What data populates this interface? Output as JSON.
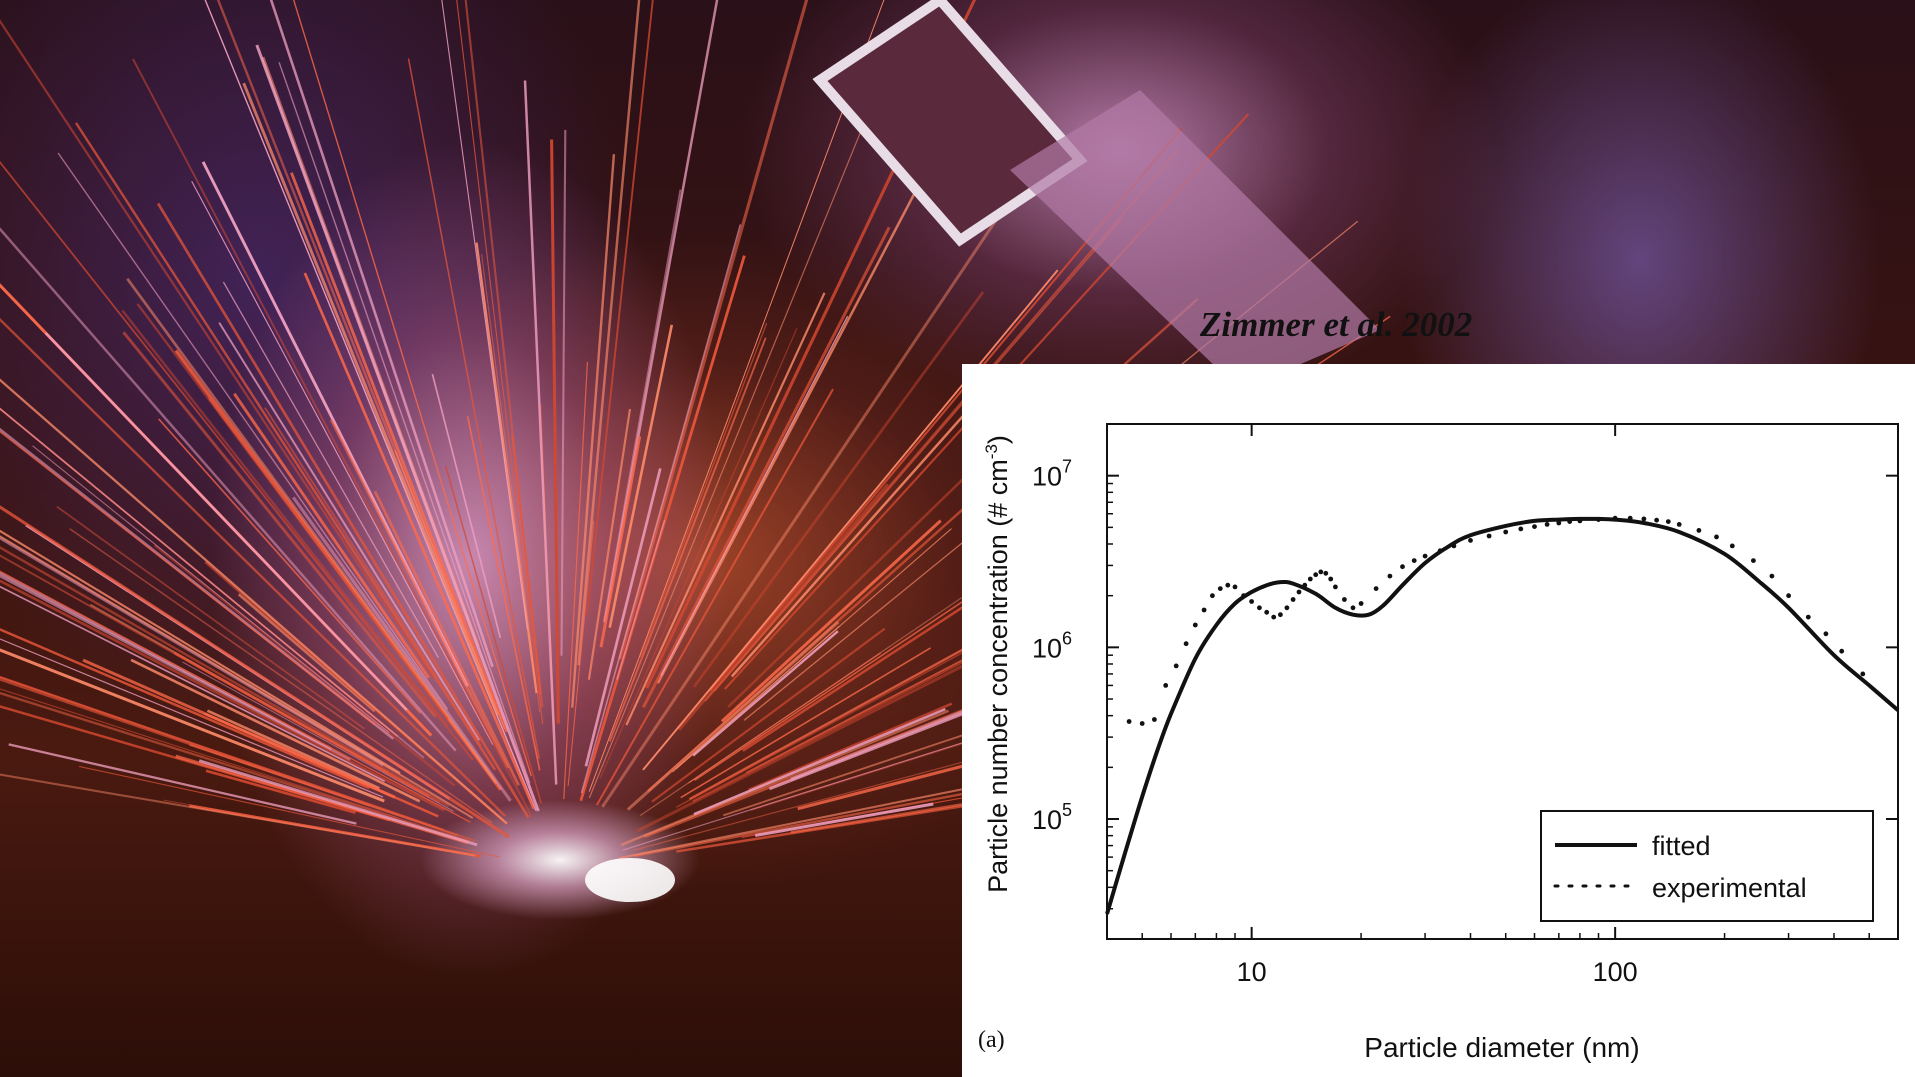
{
  "credit": "Zimmer et al. 2002",
  "chart_data": {
    "type": "line",
    "panel_label": "(a)",
    "xlabel": "Particle diameter (nm)",
    "ylabel": "Particle number concentration (# cm",
    "ylabel_sup": "-3",
    "ylabel_close": ")",
    "xscale": "log",
    "yscale": "log",
    "xlim": [
      4,
      600
    ],
    "ylim": [
      20000,
      20000000
    ],
    "x_ticks": [
      {
        "value": 10,
        "label": "10"
      },
      {
        "value": 100,
        "label": "100"
      }
    ],
    "y_ticks": [
      {
        "value": 100000,
        "base": "10",
        "exp": "5"
      },
      {
        "value": 1000000,
        "base": "10",
        "exp": "6"
      },
      {
        "value": 10000000,
        "base": "10",
        "exp": "7"
      }
    ],
    "legend_position": "bottom-right",
    "series": [
      {
        "name": "fitted",
        "style": "solid",
        "x": [
          4,
          4.5,
          5,
          5.5,
          6,
          7,
          8,
          9,
          10,
          11,
          12,
          13,
          15,
          17,
          19,
          21,
          23,
          26,
          30,
          35,
          40,
          50,
          60,
          70,
          80,
          90,
          100,
          120,
          150,
          200,
          250,
          300,
          400,
          500,
          600
        ],
        "y": [
          28000,
          65000,
          135000,
          250000,
          410000,
          860000,
          1350000,
          1800000,
          2100000,
          2300000,
          2400000,
          2350000,
          2050000,
          1700000,
          1550000,
          1550000,
          1750000,
          2300000,
          3100000,
          3900000,
          4500000,
          5100000,
          5450000,
          5550000,
          5600000,
          5600000,
          5550000,
          5300000,
          4700000,
          3500000,
          2400000,
          1700000,
          900000,
          600000,
          430000
        ]
      },
      {
        "name": "experimental",
        "style": "dotted",
        "x": [
          4.6,
          5,
          5.4,
          5.8,
          6.2,
          6.6,
          7,
          7.4,
          7.8,
          8.2,
          8.6,
          9,
          9.5,
          10,
          10.5,
          11,
          11.5,
          12,
          12.5,
          13,
          13.5,
          14,
          14.5,
          15,
          15.5,
          16,
          16.5,
          17,
          18,
          19,
          20,
          22,
          24,
          26,
          28,
          30,
          33,
          36,
          40,
          45,
          50,
          55,
          60,
          65,
          70,
          75,
          80,
          90,
          100,
          110,
          120,
          130,
          140,
          150,
          170,
          190,
          210,
          240,
          270,
          300,
          340,
          380,
          420,
          480
        ],
        "y": [
          370000,
          360000,
          380000,
          600000,
          780000,
          1050000,
          1350000,
          1650000,
          2000000,
          2200000,
          2300000,
          2250000,
          2000000,
          1850000,
          1700000,
          1600000,
          1500000,
          1550000,
          1700000,
          1900000,
          2100000,
          2300000,
          2500000,
          2650000,
          2750000,
          2700000,
          2500000,
          2250000,
          1900000,
          1700000,
          1800000,
          2200000,
          2600000,
          2950000,
          3200000,
          3400000,
          3650000,
          3900000,
          4200000,
          4450000,
          4700000,
          4900000,
          5050000,
          5200000,
          5300000,
          5400000,
          5450000,
          5550000,
          5650000,
          5650000,
          5600000,
          5500000,
          5400000,
          5200000,
          4800000,
          4400000,
          3900000,
          3200000,
          2600000,
          2000000,
          1500000,
          1200000,
          950000,
          700000
        ]
      }
    ]
  }
}
